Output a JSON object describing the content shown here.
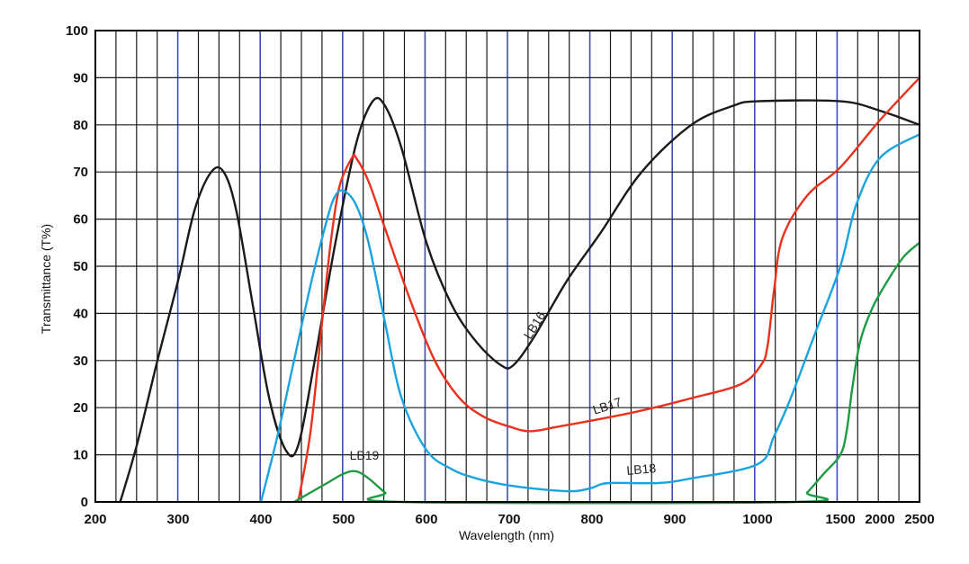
{
  "chart_data": {
    "type": "line",
    "title": "",
    "xlabel": "Wavelength (nm)",
    "ylabel": "Transmittance (T%)",
    "ylim": [
      0,
      100
    ],
    "y_ticks": [
      0,
      10,
      20,
      30,
      40,
      50,
      60,
      70,
      80,
      90,
      100
    ],
    "x_tick_labels": [
      "200",
      "300",
      "400",
      "500",
      "600",
      "700",
      "800",
      "900",
      "1000",
      "1500",
      "2000",
      "2500"
    ],
    "grid": true,
    "colors": {
      "grid_minor": "#1a1a1a",
      "grid_major": "#3b4fb5",
      "frame": "#000000"
    },
    "series": [
      {
        "name": "LB16",
        "color": "#1a1a1a",
        "label_at": {
          "x": 735,
          "y": 37,
          "angle": -58
        },
        "points": [
          [
            230,
            0
          ],
          [
            250,
            12
          ],
          [
            275,
            30
          ],
          [
            300,
            47
          ],
          [
            320,
            62
          ],
          [
            340,
            70
          ],
          [
            355,
            70
          ],
          [
            370,
            62
          ],
          [
            390,
            42
          ],
          [
            410,
            22
          ],
          [
            430,
            11
          ],
          [
            445,
            12
          ],
          [
            465,
            30
          ],
          [
            490,
            55
          ],
          [
            515,
            76
          ],
          [
            535,
            85
          ],
          [
            550,
            84
          ],
          [
            570,
            75
          ],
          [
            600,
            55
          ],
          [
            630,
            42
          ],
          [
            660,
            34
          ],
          [
            690,
            29
          ],
          [
            705,
            29
          ],
          [
            730,
            35
          ],
          [
            770,
            47
          ],
          [
            810,
            57
          ],
          [
            860,
            70
          ],
          [
            920,
            80
          ],
          [
            970,
            84
          ],
          [
            1000,
            85
          ],
          [
            1500,
            85
          ],
          [
            2000,
            83
          ],
          [
            2500,
            80
          ]
        ]
      },
      {
        "name": "LB17",
        "color": "#e8321e",
        "label_at": {
          "x": 820,
          "y": 19.5,
          "angle": -18
        },
        "points": [
          [
            445,
            0
          ],
          [
            460,
            15
          ],
          [
            475,
            40
          ],
          [
            485,
            56
          ],
          [
            495,
            67
          ],
          [
            510,
            73
          ],
          [
            515,
            73
          ],
          [
            530,
            68
          ],
          [
            550,
            58
          ],
          [
            580,
            43
          ],
          [
            610,
            30
          ],
          [
            640,
            22
          ],
          [
            670,
            18
          ],
          [
            700,
            16
          ],
          [
            725,
            15
          ],
          [
            760,
            16
          ],
          [
            850,
            19
          ],
          [
            920,
            22
          ],
          [
            980,
            25
          ],
          [
            1020,
            29
          ],
          [
            1060,
            33
          ],
          [
            1100,
            45
          ],
          [
            1150,
            56
          ],
          [
            1300,
            65
          ],
          [
            1500,
            71
          ],
          [
            2000,
            81
          ],
          [
            2500,
            90
          ]
        ]
      },
      {
        "name": "LB18",
        "color": "#1ba3e0",
        "label_at": {
          "x": 860,
          "y": 6,
          "angle": -5
        },
        "points": [
          [
            400,
            0
          ],
          [
            420,
            14
          ],
          [
            440,
            30
          ],
          [
            460,
            46
          ],
          [
            480,
            60
          ],
          [
            490,
            65
          ],
          [
            500,
            66
          ],
          [
            515,
            63
          ],
          [
            530,
            55
          ],
          [
            550,
            38
          ],
          [
            570,
            22
          ],
          [
            600,
            11
          ],
          [
            630,
            7
          ],
          [
            660,
            5
          ],
          [
            700,
            3.5
          ],
          [
            750,
            2.5
          ],
          [
            780,
            2.3
          ],
          [
            800,
            3
          ],
          [
            820,
            4
          ],
          [
            880,
            4
          ],
          [
            920,
            5
          ],
          [
            1000,
            8
          ],
          [
            1100,
            14
          ],
          [
            1200,
            22
          ],
          [
            1350,
            36
          ],
          [
            1500,
            50
          ],
          [
            1700,
            63
          ],
          [
            2000,
            73
          ],
          [
            2500,
            78
          ]
        ]
      },
      {
        "name": "LB19",
        "color": "#1e9b43",
        "label_at": {
          "x": 525,
          "y": 9,
          "angle": 0
        },
        "points": [
          [
            440,
            0
          ],
          [
            460,
            2
          ],
          [
            480,
            4
          ],
          [
            500,
            6
          ],
          [
            515,
            6.5
          ],
          [
            530,
            5
          ],
          [
            550,
            2
          ],
          [
            570,
            0
          ],
          [
            1230,
            0
          ],
          [
            1300,
            2
          ],
          [
            1400,
            6
          ],
          [
            1500,
            10
          ],
          [
            1580,
            15
          ],
          [
            1650,
            24
          ],
          [
            1750,
            34
          ],
          [
            1900,
            41
          ],
          [
            2100,
            47
          ],
          [
            2300,
            52
          ],
          [
            2500,
            55
          ]
        ]
      }
    ]
  }
}
